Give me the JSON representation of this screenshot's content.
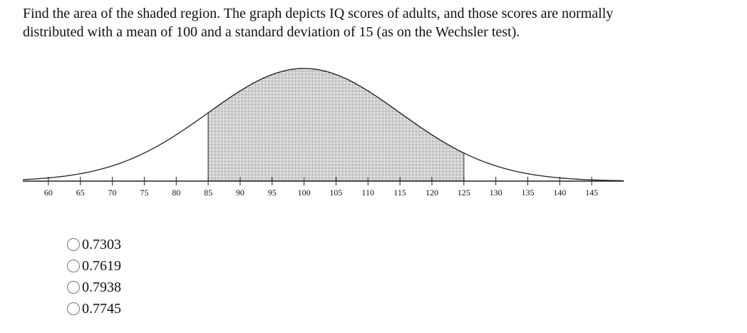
{
  "question": "Find the area of the shaded region. The graph depicts IQ scores of adults, and those scores are normally distributed with a mean of 100 and a standard deviation of 15 (as on the Wechsler test).",
  "chart_data": {
    "type": "normal-curve",
    "mean": 100,
    "sd": 15,
    "shade": [
      85,
      125
    ],
    "xlim": [
      56,
      150
    ],
    "xticks": [
      60,
      65,
      70,
      75,
      80,
      85,
      90,
      95,
      100,
      105,
      110,
      115,
      120,
      125,
      130,
      135,
      140,
      145
    ]
  },
  "options": [
    "0.7303",
    "0.7619",
    "0.7938",
    "0.7745"
  ]
}
